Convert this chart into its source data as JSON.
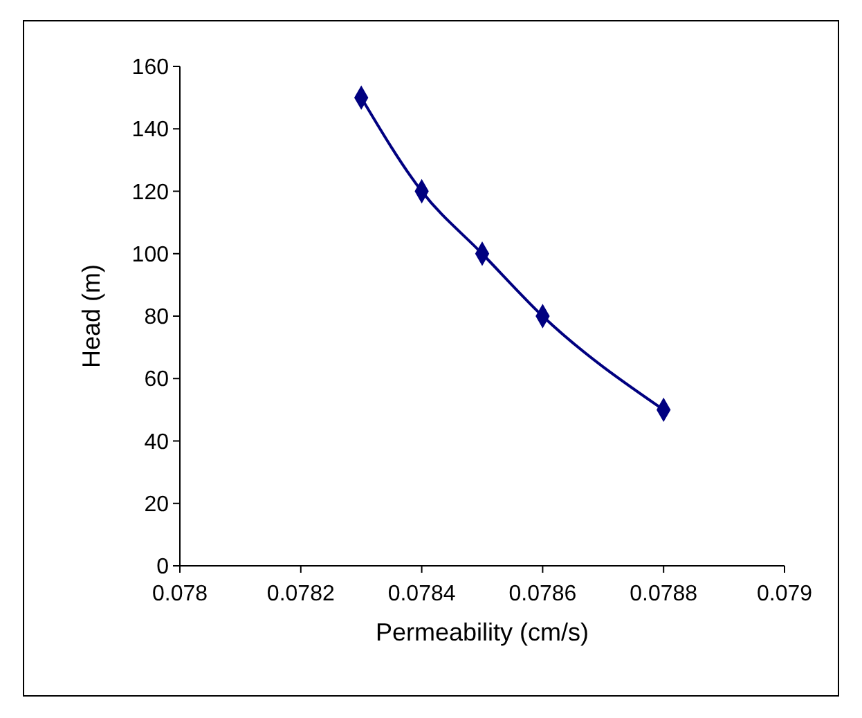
{
  "chart_data": {
    "type": "line",
    "xlabel": "Permeability (cm/s)",
    "ylabel": "Head (m)",
    "x": [
      0.0783,
      0.0784,
      0.0785,
      0.0786,
      0.0788
    ],
    "series": [
      {
        "color": "#000080",
        "values": [
          150,
          120,
          100,
          80,
          50
        ]
      }
    ],
    "xlim": [
      0.078,
      0.079
    ],
    "xticks": [
      0.078,
      0.0782,
      0.0784,
      0.0786,
      0.0788,
      0.079
    ],
    "ylim": [
      0,
      160
    ],
    "yticks": [
      0,
      20,
      40,
      60,
      80,
      100,
      120,
      140,
      160
    ],
    "grid": false,
    "marker": "diamond",
    "line_style": "solid"
  }
}
